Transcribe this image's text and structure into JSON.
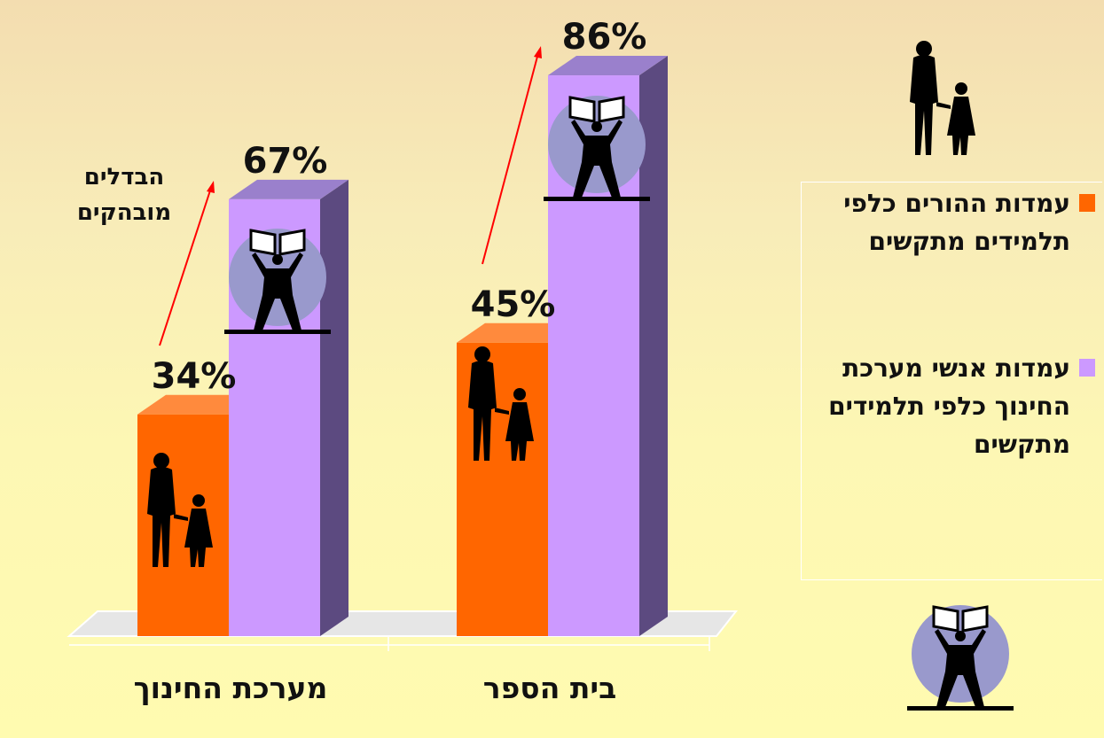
{
  "chart_data": {
    "type": "bar3d",
    "categories": [
      "מערכת החינוך",
      "בית הספר"
    ],
    "series": [
      {
        "name": "עמדות ההורים כלפי תלמידים מתקשים",
        "color": "#ff6600",
        "values": [
          34,
          45
        ],
        "value_labels": [
          "34%",
          "45%"
        ]
      },
      {
        "name": "עמדות אנשי מערכת החינוך כלפי תלמידים מתקשים",
        "color": "#cc99ff",
        "values": [
          67,
          86
        ],
        "value_labels": [
          "67%",
          "86%"
        ]
      }
    ],
    "annotation": "הבדלים מובהקים"
  }
}
